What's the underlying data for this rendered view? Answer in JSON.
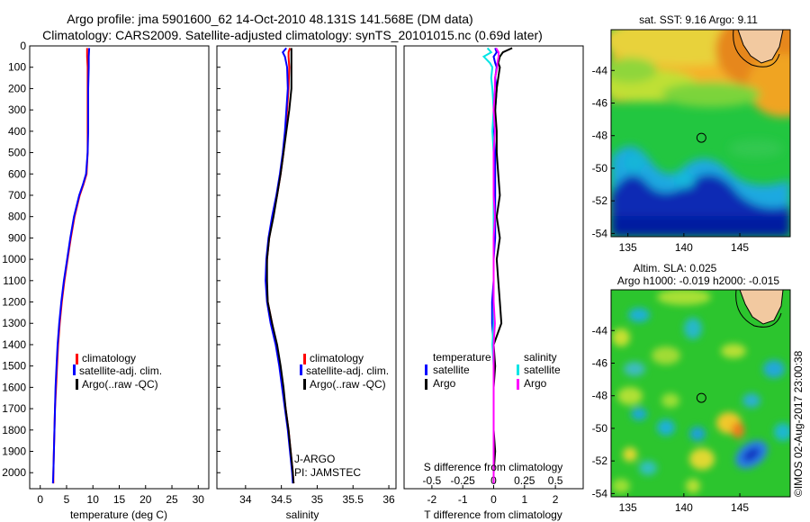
{
  "header": {
    "title_line1": "Argo profile: jma 5901600_62 14-Oct-2010 48.131S 141.568E (DM data)",
    "title_line2": "Climatology: CARS2009. Satellite-adjusted climatology: synTS_20101015.nc (0.69d later)"
  },
  "chart_data": [
    {
      "type": "line",
      "name": "temperature-profile",
      "xlabel": "temperature (deg C)",
      "ylabel": "",
      "xlim": [
        -2,
        32
      ],
      "ylim": [
        2075,
        0
      ],
      "xticks": [
        "0",
        "5",
        "10",
        "15",
        "20",
        "25",
        "30"
      ],
      "yticks": [
        "0",
        "100",
        "200",
        "300",
        "400",
        "500",
        "600",
        "700",
        "800",
        "900",
        "1000",
        "1100",
        "1200",
        "1300",
        "1400",
        "1500",
        "1600",
        "1700",
        "1800",
        "1900",
        "2000"
      ],
      "legend": {
        "position": "lower-center",
        "entries": [
          "climatology",
          "satellite-adj. clim.",
          "Argo(..raw -QC)"
        ]
      },
      "depth": [
        10,
        50,
        100,
        200,
        300,
        400,
        500,
        600,
        650,
        700,
        800,
        900,
        1000,
        1100,
        1200,
        1300,
        1400,
        1500,
        1600,
        1700,
        1800,
        1900,
        2000,
        2050
      ],
      "series": [
        {
          "name": "climatology",
          "color": "#ff0000",
          "values": [
            8.9,
            8.9,
            9.0,
            9.0,
            9.0,
            9.0,
            9.0,
            8.8,
            8.2,
            7.5,
            6.5,
            5.8,
            5.2,
            4.6,
            4.1,
            3.7,
            3.4,
            3.2,
            3.0,
            2.8,
            2.7,
            2.6,
            2.5,
            2.5
          ]
        },
        {
          "name": "satellite-adj. clim.",
          "color": "#0000ff",
          "values": [
            9.3,
            9.2,
            9.2,
            9.1,
            9.1,
            9.1,
            9.0,
            8.7,
            8.1,
            7.4,
            6.4,
            5.7,
            5.1,
            4.5,
            4.0,
            3.6,
            3.3,
            3.1,
            2.9,
            2.8,
            2.7,
            2.6,
            2.5,
            2.4
          ]
        }
      ]
    },
    {
      "type": "line",
      "name": "salinity-profile",
      "xlabel": "salinity",
      "xlim": [
        33.6,
        36.1
      ],
      "ylim": [
        2075,
        0
      ],
      "xticks": [
        "34",
        "34.5",
        "35",
        "35.5",
        "36"
      ],
      "legend": {
        "position": "lower-center",
        "entries": [
          "climatology",
          "satellite-adj. clim.",
          "Argo(..raw -QC)"
        ]
      },
      "annotation": {
        "line1": "J-ARGO",
        "line2": "PI: JAMSTEC"
      },
      "depth": [
        10,
        30,
        50,
        100,
        200,
        300,
        400,
        500,
        600,
        700,
        800,
        900,
        1000,
        1100,
        1200,
        1300,
        1400,
        1500,
        1600,
        1700,
        1800,
        1900,
        2000,
        2050
      ],
      "series": [
        {
          "name": "climatology",
          "color": "#ff0000",
          "values": [
            34.62,
            34.6,
            34.6,
            34.61,
            34.6,
            34.58,
            34.56,
            34.53,
            34.49,
            34.44,
            34.38,
            34.33,
            34.3,
            34.29,
            34.31,
            34.37,
            34.43,
            34.48,
            34.52,
            34.56,
            34.6,
            34.63,
            34.66,
            34.67
          ]
        },
        {
          "name": "satellite-adj. clim.",
          "color": "#0000ff",
          "values": [
            34.57,
            34.52,
            34.55,
            34.58,
            34.59,
            34.57,
            34.55,
            34.52,
            34.48,
            34.43,
            34.37,
            34.32,
            34.29,
            34.28,
            34.3,
            34.35,
            34.42,
            34.47,
            34.51,
            34.55,
            34.59,
            34.62,
            34.65,
            34.66
          ]
        },
        {
          "name": "Argo",
          "color": "#000000",
          "values": [
            34.64,
            34.64,
            34.64,
            34.64,
            34.64,
            34.61,
            34.57,
            34.53,
            34.49,
            34.44,
            34.39,
            34.33,
            34.3,
            34.3,
            34.31,
            34.37,
            34.44,
            34.49,
            34.53,
            34.56,
            34.6,
            34.63,
            34.66,
            34.67
          ]
        }
      ]
    },
    {
      "type": "line",
      "name": "difference-profile",
      "xlabel": "T difference from climatology",
      "xlabel2": "S difference from climatology",
      "xlim": [
        -2.9,
        2.9
      ],
      "x2lim": [
        -0.725,
        0.725
      ],
      "ylim": [
        2075,
        0
      ],
      "xticks": [
        "-2",
        "-1",
        "0",
        "1",
        "2"
      ],
      "x2ticks": [
        "-0.5",
        "-0.25",
        "0",
        "0.25",
        "0.5"
      ],
      "legend": {
        "position": "lower-center",
        "temperature_title": "temperature",
        "salinity_title": "salinity",
        "entries": [
          "satellite",
          "Argo",
          "satellite",
          "Argo"
        ]
      },
      "depth": [
        10,
        30,
        50,
        80,
        100,
        150,
        200,
        300,
        400,
        500,
        600,
        700,
        800,
        900,
        1000,
        1100,
        1200,
        1300,
        1400,
        1500,
        1600,
        1700,
        1800,
        1900,
        2000,
        2050
      ],
      "series": [
        {
          "name": "temperature satellite",
          "color": "#0000ff",
          "values": [
            0.05,
            0.1,
            0.0,
            0.05,
            0.1,
            0.05,
            0.1,
            0.05,
            0.0,
            0.05,
            0.05,
            0.05,
            0.05,
            0.05,
            0.0,
            0.0,
            -0.05,
            -0.05,
            0.0,
            0.0,
            0.0,
            0.0,
            0.0,
            0.0,
            0.0,
            0.0
          ]
        },
        {
          "name": "temperature Argo",
          "color": "#000000",
          "values": [
            0.6,
            0.3,
            0.2,
            0.15,
            0.2,
            0.15,
            0.1,
            0.05,
            0.1,
            0.1,
            0.15,
            0.2,
            0.1,
            0.2,
            0.1,
            0.15,
            0.2,
            0.25,
            0.0,
            0.05,
            0.0,
            0.0,
            0.0,
            0.05,
            0.0,
            0.0
          ]
        },
        {
          "name": "salinity satellite",
          "color": "#00e5e5",
          "values": [
            -0.05,
            -0.02,
            -0.08,
            -0.03,
            -0.01,
            -0.02,
            -0.01,
            0.0,
            -0.01,
            0.0,
            0.0,
            0.0,
            0.0,
            0.0,
            0.0,
            0.0,
            0.0,
            0.0,
            -0.01,
            0.0,
            0.0,
            0.0,
            0.0,
            0.0,
            0.0,
            0.0
          ]
        },
        {
          "name": "salinity Argo",
          "color": "#ff00ff",
          "values": [
            0.02,
            0.04,
            0.04,
            0.03,
            0.03,
            0.01,
            0.01,
            0.0,
            0.01,
            0.0,
            0.0,
            0.0,
            0.01,
            0.0,
            0.0,
            0.0,
            0.0,
            0.01,
            0.0,
            0.0,
            0.0,
            0.0,
            0.0,
            0.0,
            0.0,
            0.0
          ]
        }
      ]
    },
    {
      "type": "heatmap",
      "name": "sst-map",
      "title": "sat. SST: 9.16 Argo: 9.11",
      "xlim": [
        133.5,
        149.5
      ],
      "ylim": [
        -54.2,
        -41.5
      ],
      "xticks": [
        "135",
        "140",
        "145"
      ],
      "yticks": [
        "-44",
        "-46",
        "-48",
        "-50",
        "-52",
        "-54"
      ],
      "argo_position": {
        "lon": 141.568,
        "lat": -48.131
      }
    },
    {
      "type": "heatmap",
      "name": "sla-map",
      "title": "Altim. SLA: 0.025",
      "subtitle": "Argo h1000: -0.019 h2000: -0.015",
      "xlim": [
        133.5,
        149.5
      ],
      "ylim": [
        -54.2,
        -41.5
      ],
      "xticks": [
        "135",
        "140",
        "145"
      ],
      "yticks": [
        "-44",
        "-46",
        "-48",
        "-50",
        "-52",
        "-54"
      ],
      "argo_position": {
        "lon": 141.568,
        "lat": -48.131
      }
    }
  ],
  "footer": {
    "stamp": "©IMOS 02-Aug-2017 23:00:38"
  }
}
